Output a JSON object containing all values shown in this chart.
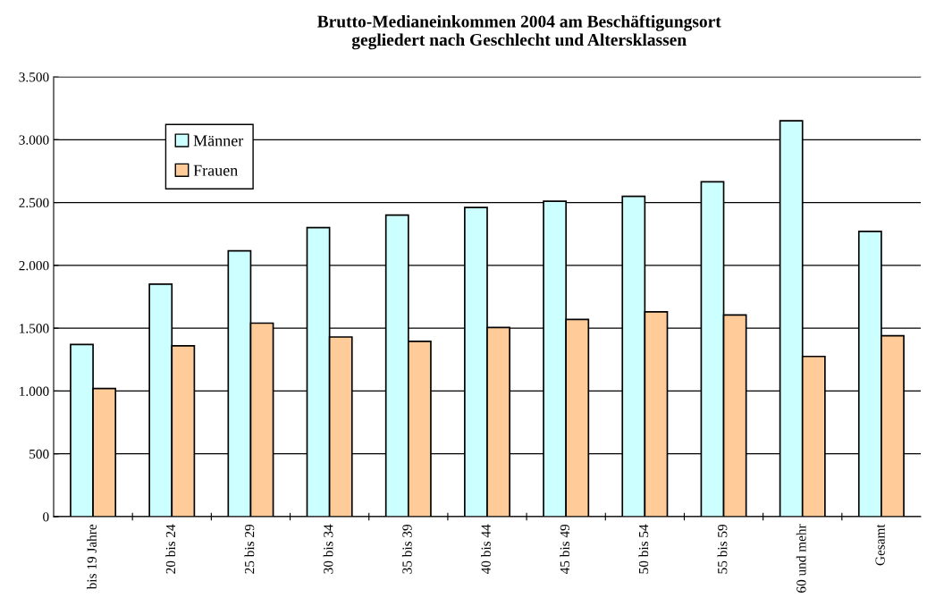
{
  "chart_data": {
    "type": "bar",
    "title": "Brutto-Medianeinkommen 2004 am Beschäftigungsort\ngegliedert nach Geschlecht und Altersklassen",
    "categories": [
      "bis 19 Jahre",
      "20 bis 24",
      "25 bis 29",
      "30 bis 34",
      "35 bis 39",
      "40 bis 44",
      "45 bis 49",
      "50 bis 54",
      "55 bis 59",
      "60 und mehr",
      "Gesamt"
    ],
    "series": [
      {
        "name": "Männer",
        "color": "#ccffff",
        "values": [
          1370,
          1850,
          2115,
          2300,
          2400,
          2460,
          2510,
          2550,
          2665,
          3150,
          2270
        ]
      },
      {
        "name": "Frauen",
        "color": "#ffcc99",
        "values": [
          1020,
          1360,
          1540,
          1430,
          1395,
          1505,
          1570,
          1630,
          1605,
          1275,
          1440
        ]
      }
    ],
    "ylim": [
      0,
      3500
    ],
    "yticks": [
      {
        "value": 0,
        "label": "0"
      },
      {
        "value": 500,
        "label": "500"
      },
      {
        "value": 1000,
        "label": "1.000"
      },
      {
        "value": 1500,
        "label": "1.500"
      },
      {
        "value": 2000,
        "label": "2.000"
      },
      {
        "value": 2500,
        "label": "2.500"
      },
      {
        "value": 3000,
        "label": "3.000"
      },
      {
        "value": 3500,
        "label": "3.500"
      }
    ],
    "grid": "y",
    "legend": "top left"
  }
}
